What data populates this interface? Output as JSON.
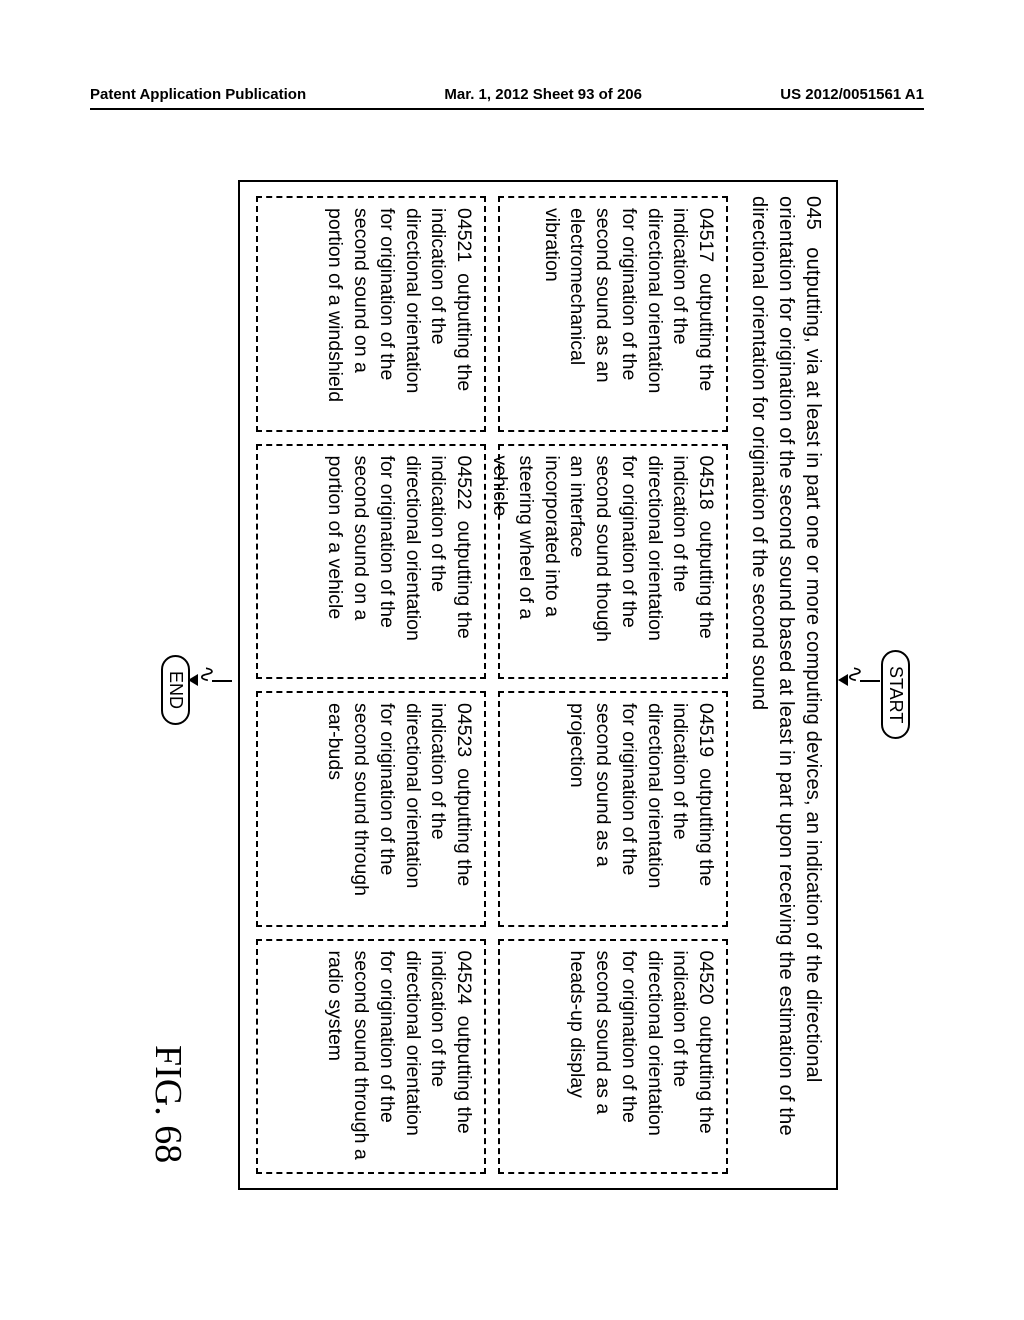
{
  "header": {
    "left": "Patent Application Publication",
    "center": "Mar. 1, 2012  Sheet 93 of 206",
    "right": "US 2012/0051561 A1"
  },
  "flowchart": {
    "type": "flowchart",
    "orientation": "rotated-90-ccw",
    "background_color": "#ffffff",
    "line_color": "#000000",
    "dash_pattern": "6,4",
    "border_width": 2,
    "fontsize": 20,
    "start_label": "START",
    "end_label": "END",
    "main": {
      "num": "045",
      "text": "outputting, via at least in part one or more computing devices, an indication of the directional orientation for origination of the second sound based at least in part upon receiving the estimation of the directional orientation for origination of the second sound"
    },
    "subs": [
      {
        "num": "04517",
        "text": "outputting the indication of the directional orientation for origination of the second sound as an electromechanical vibration"
      },
      {
        "num": "04518",
        "text": "outputting the indication of the directional orientation for origination of the second sound though an interface incorporated into a steering wheel of a vehicle"
      },
      {
        "num": "04519",
        "text": "outputting the indication of the directional orientation for origination of the second sound as a projection"
      },
      {
        "num": "04520",
        "text": "outputting the indication of the directional orientation for origination of the second sound as a heads-up display"
      },
      {
        "num": "04521",
        "text": "outputting the indication of the directional orientation for origination of the second sound on a portion of a windshield"
      },
      {
        "num": "04522",
        "text": "outputting the indication of the directional orientation for origination of the second sound on a portion of a vehicle"
      },
      {
        "num": "04523",
        "text": "outputting the indication of the directional orientation for origination of the second sound through ear-buds"
      },
      {
        "num": "04524",
        "text": "outputting the indication of the directional orientation for origination of the second sound through a radio system"
      }
    ],
    "figure_label": "FIG. 68"
  }
}
